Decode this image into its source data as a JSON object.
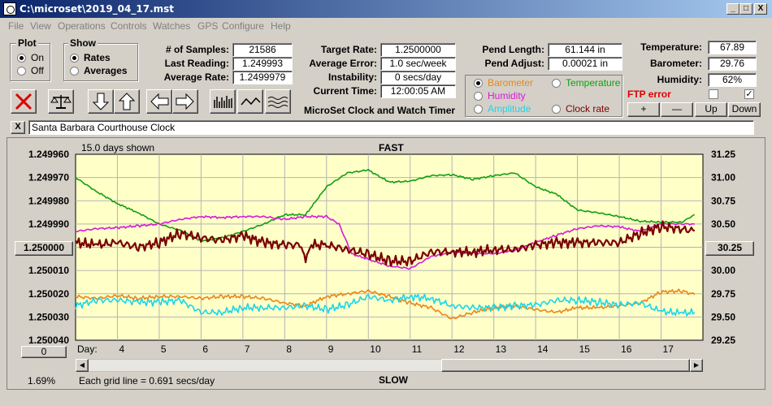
{
  "window": {
    "title": "C:\\microset\\2019_04_17.mst",
    "minimize": "_",
    "maximize": "□",
    "close": "X"
  },
  "menu": [
    "File",
    "View",
    "Operations",
    "Controls",
    "Watches",
    "GPS",
    "Configure",
    "Help"
  ],
  "plot": {
    "title": "Plot",
    "options": [
      "On",
      "Off"
    ],
    "selected": "On"
  },
  "show": {
    "title": "Show",
    "options": [
      "Rates",
      "Averages"
    ],
    "selected": "Rates"
  },
  "stats": {
    "samples_label": "# of Samples:",
    "samples": "21586",
    "last_reading_label": "Last Reading:",
    "last_reading": "1.249993",
    "average_rate_label": "Average Rate:",
    "average_rate": "1.2499979"
  },
  "rates": {
    "target_rate_label": "Target Rate:",
    "target_rate": "1.2500000",
    "average_error_label": "Average Error:",
    "average_error": "1.0 sec/week",
    "instability_label": "Instability:",
    "instability": "0 secs/day",
    "current_time_label": "Current Time:",
    "current_time": "12:00:05 AM"
  },
  "pend": {
    "length_label": "Pend Length:",
    "length": "61.144 in",
    "adjust_label": "Pend Adjust:",
    "adjust": "0.00021 in"
  },
  "env": {
    "temperature_label": "Temperature:",
    "temperature": "67.89",
    "barometer_label": "Barometer:",
    "barometer": "29.76",
    "humidity_label": "Humidity:",
    "humidity": "62%",
    "ftp_error": "FTP error"
  },
  "channels": [
    {
      "label": "Barometer",
      "color": "#e8861a",
      "selected": true
    },
    {
      "label": "Temperature",
      "color": "#10a010",
      "selected": false
    },
    {
      "label": "Humidity",
      "color": "#d61ad6",
      "selected": false
    },
    {
      "label": "Amplitude",
      "color": "#1ad6e8",
      "selected": false
    },
    {
      "label": "Clock rate",
      "color": "#7a0000",
      "selected": false
    }
  ],
  "adjust_buttons": [
    "+",
    "—",
    "Up",
    "Down"
  ],
  "app_subtitle": "MicroSet Clock and Watch Timer",
  "clock_name": "Santa Barbara Courthouse Clock",
  "clock_name_close": "X",
  "chart_data": {
    "type": "line",
    "top_label": "FAST",
    "bottom_label": "SLOW",
    "days_shown": "15.0 days shown",
    "grid_note": "Each grid line = 0.691 secs/day",
    "percent": "1.69%",
    "left_button": "1.250000",
    "right_button": "30.25",
    "zero_button": "0",
    "x_label": "Day:",
    "x_ticks": [
      "4",
      "5",
      "6",
      "7",
      "8",
      "9",
      "10",
      "11",
      "12",
      "13",
      "14",
      "15",
      "16",
      "17"
    ],
    "y_left_ticks": [
      "1.249960",
      "1.249970",
      "1.249980",
      "1.249990",
      "1.250000",
      "1.250010",
      "1.250020",
      "1.250030",
      "1.250040"
    ],
    "y_right_ticks": [
      "31.25",
      "31.00",
      "30.75",
      "30.50",
      "30.25",
      "30.00",
      "29.75",
      "29.50",
      "29.25"
    ],
    "y_left_range": [
      1.24996,
      1.25004
    ],
    "y_right_range": [
      29.25,
      31.25
    ],
    "x_range": [
      3.0,
      18.0
    ],
    "grid": true,
    "series": [
      {
        "color": "#10a010",
        "axis": "right",
        "x": [
          3.0,
          3.5,
          4.0,
          4.5,
          5.0,
          5.5,
          6.0,
          6.5,
          7.0,
          7.5,
          8.0,
          8.5,
          9.0,
          9.5,
          10.0,
          10.5,
          11.0,
          11.5,
          12.0,
          12.5,
          13.0,
          13.5,
          14.0,
          14.5,
          15.0,
          15.5,
          16.0,
          16.5,
          17.0,
          17.5,
          17.8
        ],
        "y": [
          31.0,
          30.85,
          30.72,
          30.62,
          30.5,
          30.43,
          30.32,
          30.35,
          30.42,
          30.5,
          30.6,
          30.6,
          30.9,
          31.05,
          31.08,
          30.95,
          30.96,
          31.02,
          31.03,
          30.98,
          31.02,
          31.05,
          30.9,
          30.82,
          30.65,
          30.62,
          30.58,
          30.53,
          30.52,
          30.52,
          30.6
        ]
      },
      {
        "color": "#d61ad6",
        "axis": "right",
        "x": [
          3.0,
          3.5,
          4.0,
          4.5,
          5.0,
          5.5,
          6.0,
          6.5,
          7.0,
          7.5,
          8.0,
          8.5,
          9.0,
          9.3,
          9.6,
          10.0,
          10.5,
          11.0,
          11.5,
          12.0,
          12.5,
          13.0,
          13.5,
          14.0,
          14.5,
          15.0,
          15.5,
          16.0,
          16.5,
          17.0,
          17.8
        ],
        "y": [
          30.42,
          30.45,
          30.46,
          30.48,
          30.5,
          30.55,
          30.58,
          30.57,
          30.58,
          30.58,
          30.55,
          30.58,
          30.58,
          30.5,
          30.18,
          30.12,
          30.05,
          30.02,
          30.15,
          30.2,
          30.19,
          30.18,
          30.22,
          30.3,
          30.38,
          30.45,
          30.48,
          30.47,
          30.42,
          30.5,
          30.5
        ]
      },
      {
        "color": "#e8861a",
        "axis": "right",
        "x": [
          3.0,
          3.5,
          4.0,
          4.5,
          5.0,
          5.5,
          6.0,
          6.5,
          7.0,
          7.5,
          8.0,
          8.5,
          9.0,
          9.5,
          10.0,
          10.5,
          11.0,
          11.5,
          12.0,
          12.5,
          13.0,
          13.5,
          14.0,
          14.5,
          15.0,
          15.5,
          16.0,
          16.5,
          17.0,
          17.5,
          17.8
        ],
        "y": [
          29.72,
          29.7,
          29.73,
          29.7,
          29.72,
          29.72,
          29.7,
          29.72,
          29.72,
          29.7,
          29.65,
          29.62,
          29.72,
          29.75,
          29.78,
          29.72,
          29.65,
          29.6,
          29.48,
          29.55,
          29.6,
          29.62,
          29.58,
          29.55,
          29.6,
          29.6,
          29.62,
          29.65,
          29.77,
          29.78,
          29.74
        ]
      },
      {
        "color": "#1ad6e8",
        "axis": "right",
        "x": [
          3.0,
          3.5,
          4.0,
          4.5,
          5.0,
          5.5,
          6.0,
          6.5,
          7.0,
          7.5,
          8.0,
          8.5,
          9.0,
          9.5,
          10.0,
          10.5,
          11.0,
          11.5,
          12.0,
          12.5,
          13.0,
          13.5,
          14.0,
          14.5,
          15.0,
          15.5,
          16.0,
          16.5,
          17.0,
          17.5,
          17.8
        ],
        "y": [
          29.62,
          29.68,
          29.68,
          29.66,
          29.66,
          29.68,
          29.55,
          29.55,
          29.6,
          29.6,
          29.6,
          29.62,
          29.58,
          29.63,
          29.72,
          29.68,
          29.72,
          29.7,
          29.62,
          29.6,
          29.6,
          29.62,
          29.63,
          29.68,
          29.68,
          29.66,
          29.63,
          29.65,
          29.56,
          29.54,
          29.55
        ]
      },
      {
        "color": "#7a0000",
        "axis": "left",
        "x": [
          3.0,
          3.5,
          4.0,
          4.5,
          5.0,
          5.5,
          6.0,
          6.5,
          7.0,
          7.5,
          8.0,
          8.4,
          8.5,
          8.6,
          9.0,
          9.5,
          10.0,
          10.5,
          11.0,
          11.5,
          12.0,
          12.5,
          13.0,
          13.5,
          14.0,
          14.5,
          15.0,
          15.5,
          16.0,
          16.5,
          17.0,
          17.8
        ],
        "y": [
          1.249998,
          1.249999,
          1.249998,
          1.25,
          1.249998,
          1.249994,
          1.249996,
          1.249997,
          1.249995,
          1.249998,
          1.249999,
          1.249999,
          1.250005,
          1.249999,
          1.249999,
          1.250001,
          1.250003,
          1.250006,
          1.250006,
          1.250002,
          1.250002,
          1.250002,
          1.250001,
          1.250001,
          1.249999,
          1.249998,
          1.249998,
          1.249998,
          1.249998,
          1.249994,
          1.249991,
          1.249993
        ]
      }
    ]
  }
}
